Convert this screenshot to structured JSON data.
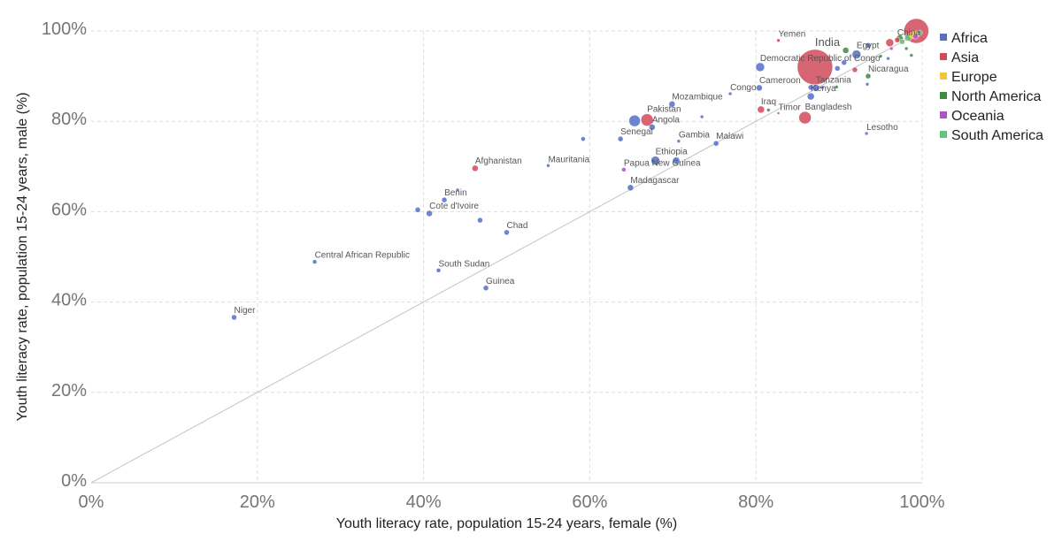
{
  "chart_data": {
    "type": "scatter",
    "xlabel": "Youth literacy rate, population 15-24 years, female (%)",
    "ylabel": "Youth literacy rate, population 15-24 years, male (%)",
    "xlim": [
      0,
      100
    ],
    "ylim": [
      0,
      100
    ],
    "x_ticks": [
      "0%",
      "20%",
      "40%",
      "60%",
      "80%",
      "100%"
    ],
    "y_ticks": [
      "0%",
      "20%",
      "40%",
      "60%",
      "80%",
      "100%"
    ],
    "grid": true,
    "reference_line": "y = x",
    "legend_position": "right",
    "bubble_sized": true,
    "series": [
      {
        "name": "Africa",
        "color": "#5470c6"
      },
      {
        "name": "Asia",
        "color": "#d04a5a"
      },
      {
        "name": "Europe",
        "color": "#f2c53d"
      },
      {
        "name": "North America",
        "color": "#3f8a3f"
      },
      {
        "name": "Oceania",
        "color": "#a855c8"
      },
      {
        "name": "South America",
        "color": "#5ec77a"
      }
    ],
    "points": [
      {
        "label": "Niger",
        "x": 17.2,
        "y": 36.6,
        "region": "Africa",
        "size": 3
      },
      {
        "label": "Central African Republic",
        "x": 26.9,
        "y": 48.9,
        "region": "Africa",
        "size": 2.5
      },
      {
        "label": "South Sudan",
        "x": 41.8,
        "y": 47.0,
        "region": "Africa",
        "size": 2.5
      },
      {
        "label": "Guinea",
        "x": 47.5,
        "y": 43.1,
        "region": "Africa",
        "size": 3
      },
      {
        "label": "Chad",
        "x": 50.0,
        "y": 55.4,
        "region": "Africa",
        "size": 3
      },
      {
        "label": "",
        "x": 46.8,
        "y": 58.1,
        "region": "Africa",
        "size": 3
      },
      {
        "label": "Cote d'Ivoire",
        "x": 40.7,
        "y": 59.6,
        "region": "Africa",
        "size": 3.5
      },
      {
        "label": "",
        "x": 39.3,
        "y": 60.4,
        "region": "Africa",
        "size": 3
      },
      {
        "label": "Benin",
        "x": 42.5,
        "y": 62.6,
        "region": "Africa",
        "size": 3
      },
      {
        "label": "",
        "x": 44.1,
        "y": 64.8,
        "region": "Africa",
        "size": 2
      },
      {
        "label": "Afghanistan",
        "x": 46.2,
        "y": 69.6,
        "region": "Asia",
        "size": 3.5
      },
      {
        "label": "Mauritania",
        "x": 55.0,
        "y": 70.2,
        "region": "Africa",
        "size": 2
      },
      {
        "label": "",
        "x": 59.2,
        "y": 76.1,
        "region": "Africa",
        "size": 2.5
      },
      {
        "label": "Senegal",
        "x": 63.7,
        "y": 76.1,
        "region": "Africa",
        "size": 3
      },
      {
        "label": "Papua New Guinea",
        "x": 64.1,
        "y": 69.3,
        "region": "Oceania",
        "size": 2.5
      },
      {
        "label": "Madagascar",
        "x": 64.9,
        "y": 65.3,
        "region": "Africa",
        "size": 3.5
      },
      {
        "label": "Pakistan",
        "x": 66.9,
        "y": 80.3,
        "region": "Asia",
        "size": 7
      },
      {
        "label": "",
        "x": 65.4,
        "y": 80.1,
        "region": "Africa",
        "size": 6.5
      },
      {
        "label": "Angola",
        "x": 67.5,
        "y": 78.7,
        "region": "Africa",
        "size": 3.5
      },
      {
        "label": "Ethiopia",
        "x": 67.9,
        "y": 71.3,
        "region": "Africa",
        "size": 5
      },
      {
        "label": "",
        "x": 70.4,
        "y": 71.3,
        "region": "Africa",
        "size": 4
      },
      {
        "label": "Gambia",
        "x": 70.7,
        "y": 75.6,
        "region": "Africa",
        "size": 2
      },
      {
        "label": "Mozambique",
        "x": 69.9,
        "y": 83.8,
        "region": "Africa",
        "size": 3.5
      },
      {
        "label": "",
        "x": 73.5,
        "y": 81.0,
        "region": "Africa",
        "size": 2
      },
      {
        "label": "Malawi",
        "x": 75.2,
        "y": 75.1,
        "region": "Africa",
        "size": 3
      },
      {
        "label": "Congo",
        "x": 76.9,
        "y": 86.1,
        "region": "Africa",
        "size": 2
      },
      {
        "label": "Cameroon",
        "x": 80.4,
        "y": 87.4,
        "region": "Africa",
        "size": 3.5
      },
      {
        "label": "Iraq",
        "x": 80.6,
        "y": 82.6,
        "region": "Asia",
        "size": 4
      },
      {
        "label": "Timor",
        "x": 82.7,
        "y": 81.8,
        "region": "Asia",
        "size": 1.5
      },
      {
        "label": "",
        "x": 81.5,
        "y": 82.5,
        "region": "North America",
        "size": 2
      },
      {
        "label": "Democratic Republic of Congo",
        "x": 80.5,
        "y": 92.0,
        "region": "Africa",
        "size": 5
      },
      {
        "label": "Yemen",
        "x": 82.7,
        "y": 97.9,
        "region": "Asia",
        "size": 2
      },
      {
        "label": "India",
        "x": 87.1,
        "y": 92.0,
        "region": "Asia",
        "size": 20
      },
      {
        "label": "Bangladesh",
        "x": 85.9,
        "y": 80.8,
        "region": "Asia",
        "size": 7
      },
      {
        "label": "Tanzania",
        "x": 87.2,
        "y": 87.4,
        "region": "Africa",
        "size": 4
      },
      {
        "label": "Kenya",
        "x": 86.6,
        "y": 85.5,
        "region": "Africa",
        "size": 4
      },
      {
        "label": "",
        "x": 86.6,
        "y": 87.5,
        "region": "Africa",
        "size": 3
      },
      {
        "label": "",
        "x": 88.0,
        "y": 87.5,
        "region": "Africa",
        "size": 2
      },
      {
        "label": "",
        "x": 89.7,
        "y": 87.6,
        "region": "North America",
        "size": 2
      },
      {
        "label": "",
        "x": 89.8,
        "y": 91.7,
        "region": "Africa",
        "size": 3
      },
      {
        "label": "",
        "x": 90.6,
        "y": 93.0,
        "region": "Africa",
        "size": 3
      },
      {
        "label": "",
        "x": 90.8,
        "y": 95.7,
        "region": "North America",
        "size": 3.5
      },
      {
        "label": "Egypt",
        "x": 92.1,
        "y": 94.8,
        "region": "Africa",
        "size": 5
      },
      {
        "label": "",
        "x": 91.9,
        "y": 91.4,
        "region": "Asia",
        "size": 3
      },
      {
        "label": "Nicaragua",
        "x": 93.5,
        "y": 90.0,
        "region": "North America",
        "size": 3
      },
      {
        "label": "",
        "x": 93.4,
        "y": 88.2,
        "region": "Africa",
        "size": 2
      },
      {
        "label": "Lesotho",
        "x": 93.3,
        "y": 77.3,
        "region": "Africa",
        "size": 2
      },
      {
        "label": "",
        "x": 93.5,
        "y": 96.8,
        "region": "Africa",
        "size": 3
      },
      {
        "label": "",
        "x": 95.0,
        "y": 94.4,
        "region": "North America",
        "size": 2
      },
      {
        "label": "",
        "x": 95.9,
        "y": 93.9,
        "region": "Africa",
        "size": 2
      },
      {
        "label": "",
        "x": 96.3,
        "y": 96.1,
        "region": "Oceania",
        "size": 2
      },
      {
        "label": "",
        "x": 96.1,
        "y": 97.4,
        "region": "Asia",
        "size": 4.5
      },
      {
        "label": "China",
        "x": 97.0,
        "y": 98.0,
        "region": "Asia",
        "size": 3
      },
      {
        "label": "",
        "x": 97.3,
        "y": 98.3,
        "region": "North America",
        "size": 4
      },
      {
        "label": "",
        "x": 97.6,
        "y": 97.6,
        "region": "South America",
        "size": 3
      },
      {
        "label": "",
        "x": 98.1,
        "y": 96.1,
        "region": "North America",
        "size": 2
      },
      {
        "label": "",
        "x": 98.3,
        "y": 98.5,
        "region": "South America",
        "size": 4
      },
      {
        "label": "",
        "x": 98.7,
        "y": 94.6,
        "region": "North America",
        "size": 2
      },
      {
        "label": "",
        "x": 98.9,
        "y": 99.1,
        "region": "Europe",
        "size": 4
      },
      {
        "label": "",
        "x": 99.2,
        "y": 98.8,
        "region": "Oceania",
        "size": 3
      },
      {
        "label": "",
        "x": 99.4,
        "y": 99.4,
        "region": "Europe",
        "size": 3.5
      },
      {
        "label": "",
        "x": 99.7,
        "y": 99.6,
        "region": "South America",
        "size": 3
      },
      {
        "label": "",
        "x": 99.3,
        "y": 100.0,
        "region": "Asia",
        "size": 14
      }
    ]
  }
}
